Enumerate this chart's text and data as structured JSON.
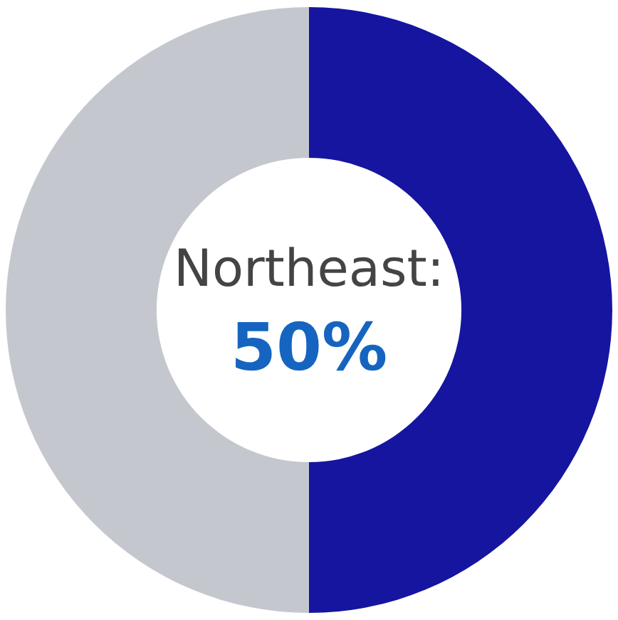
{
  "chart_data": {
    "type": "donut",
    "categories": [
      null,
      null
    ],
    "values": [
      50,
      50
    ],
    "colors": [
      "#1515a0",
      "#c4c7cd"
    ],
    "legend": false,
    "annotations": [
      "Northeast:",
      "50%"
    ]
  }
}
